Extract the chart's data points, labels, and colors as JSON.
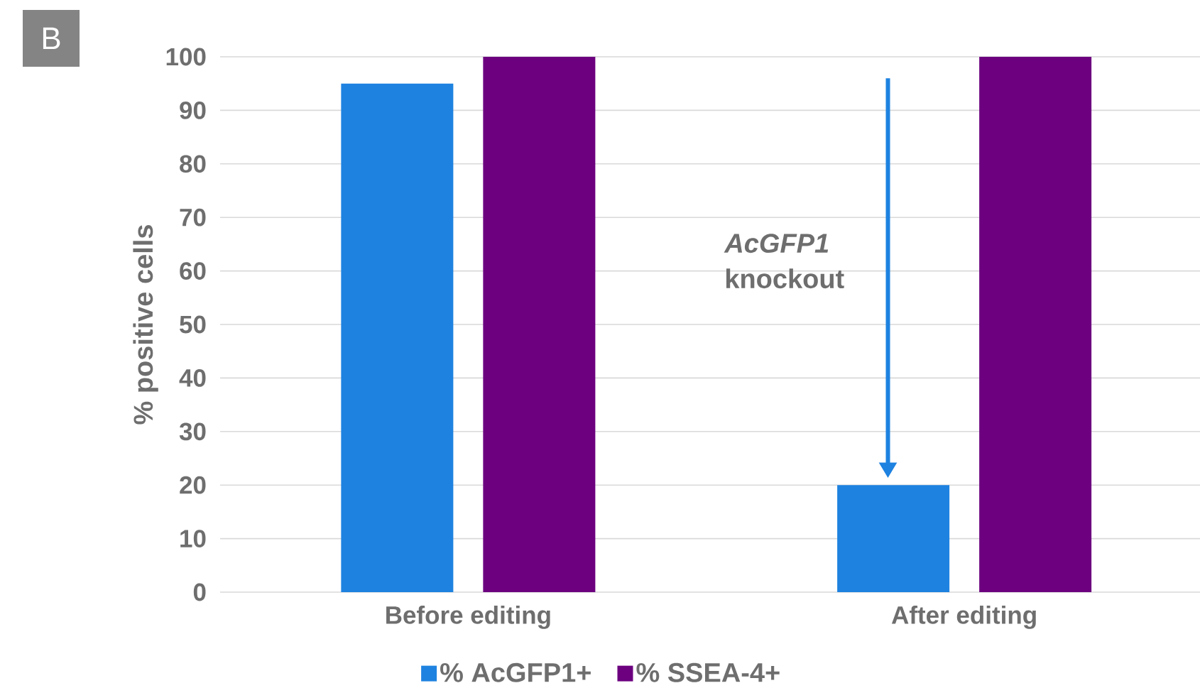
{
  "chart_data": {
    "type": "bar",
    "ylabel": "% positive cells",
    "categories": [
      "Before editing",
      "After editing"
    ],
    "series": [
      {
        "name": "% AcGFP1+",
        "color": "#1e82e0",
        "values": [
          95,
          20
        ]
      },
      {
        "name": "% SSEA-4+",
        "color": "#6c007f",
        "values": [
          100,
          100
        ]
      }
    ],
    "ylim": [
      0,
      100
    ],
    "yticks": [
      0,
      10,
      20,
      30,
      40,
      50,
      60,
      70,
      80,
      90,
      100
    ],
    "grid": "y",
    "legend": "bottom",
    "annotations": [
      "B",
      "*AcGFP1* knockout"
    ]
  }
}
